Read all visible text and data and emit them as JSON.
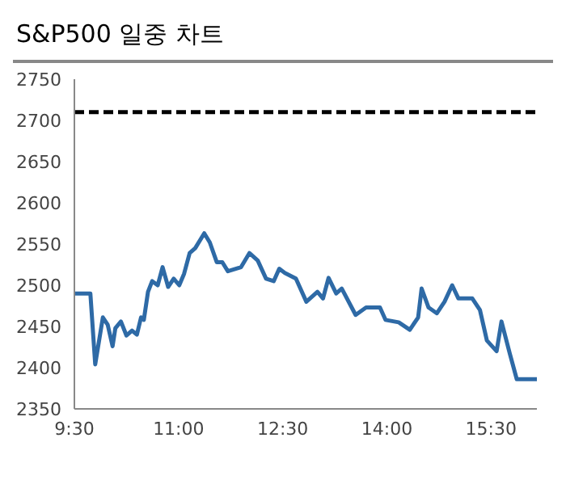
{
  "chart_data": {
    "type": "line",
    "title": "S&P500 일중 차트",
    "x": [
      9.5,
      9.73,
      9.8,
      9.91,
      9.98,
      10.05,
      10.09,
      10.17,
      10.25,
      10.33,
      10.4,
      10.46,
      10.5,
      10.56,
      10.62,
      10.7,
      10.77,
      10.85,
      10.93,
      11.01,
      11.08,
      11.16,
      11.24,
      11.37,
      11.45,
      11.55,
      11.63,
      11.71,
      11.9,
      12.02,
      12.14,
      12.26,
      12.37,
      12.45,
      12.53,
      12.69,
      12.84,
      13.0,
      13.08,
      13.16,
      13.27,
      13.35,
      13.55,
      13.7,
      13.9,
      13.98,
      14.17,
      14.33,
      14.45,
      14.5,
      14.6,
      14.72,
      14.83,
      14.94,
      15.03,
      15.23,
      15.34,
      15.44,
      15.58,
      15.65,
      15.77,
      15.87,
      16.16
    ],
    "series": [
      {
        "color": "#2e6aa6",
        "values": [
          2490,
          2490,
          2404,
          2461,
          2452,
          2426,
          2448,
          2456,
          2439,
          2445,
          2440,
          2461,
          2458,
          2492,
          2505,
          2500,
          2522,
          2498,
          2508,
          2500,
          2514,
          2539,
          2545,
          2563,
          2552,
          2528,
          2528,
          2517,
          2522,
          2539,
          2530,
          2508,
          2505,
          2520,
          2515,
          2508,
          2480,
          2492,
          2484,
          2509,
          2490,
          2496,
          2464,
          2473,
          2473,
          2458,
          2455,
          2446,
          2461,
          2496,
          2473,
          2466,
          2480,
          2500,
          2484,
          2484,
          2470,
          2433,
          2420,
          2456,
          2417,
          2386,
          2386
        ]
      }
    ],
    "xlim": [
      9.5,
      16.16
    ],
    "xticks": [
      {
        "value": 9.5,
        "label": "9:30"
      },
      {
        "value": 11,
        "label": "11:00"
      },
      {
        "value": 12.5,
        "label": "12:30"
      },
      {
        "value": 14,
        "label": "14:00"
      },
      {
        "value": 15.5,
        "label": "15:30"
      }
    ],
    "ylim": [
      2350,
      2750
    ],
    "yticks": [
      2350,
      2400,
      2450,
      2500,
      2550,
      2600,
      2650,
      2700,
      2750
    ],
    "ref_lines": [
      {
        "axis": "y",
        "value": 2710,
        "color": "#000000",
        "line_style": "dashed"
      }
    ],
    "grid": false,
    "legend": false,
    "marker": "none",
    "line_style": "solid"
  }
}
